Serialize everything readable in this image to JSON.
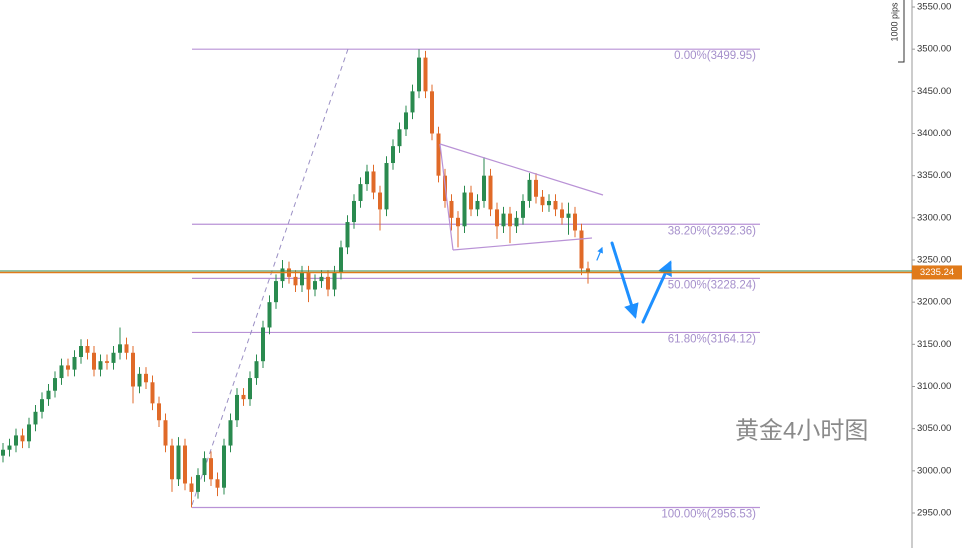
{
  "chart_data": {
    "type": "candlestick",
    "annotation": "黄金4小时图",
    "scale_label": "1000 pips",
    "ylim": [
      2950,
      3550
    ],
    "yticks": [
      {
        "value": 2950,
        "label": "2950.00"
      },
      {
        "value": 3000,
        "label": "3000.00"
      },
      {
        "value": 3050,
        "label": "3050.00"
      },
      {
        "value": 3100,
        "label": "3100.00"
      },
      {
        "value": 3150,
        "label": "3150.00"
      },
      {
        "value": 3200,
        "label": "3200.00"
      },
      {
        "value": 3250,
        "label": "3250.00"
      },
      {
        "value": 3300,
        "label": "3300.00"
      },
      {
        "value": 3350,
        "label": "3350.00"
      },
      {
        "value": 3400,
        "label": "3400.00"
      },
      {
        "value": 3450,
        "label": "3450.00"
      },
      {
        "value": 3500,
        "label": "3500.00"
      },
      {
        "value": 3550,
        "label": "3550.00"
      }
    ],
    "up_color": "#2a8a4f",
    "down_color": "#e06a28",
    "last_price": 3235.24,
    "last_price_color": "#e07a1a",
    "fib_color": "#b992d6",
    "fib_levels": [
      {
        "label": "0.00%(3499.95)",
        "value": 3499.95
      },
      {
        "label": "38.20%(3292.36)",
        "value": 3292.36
      },
      {
        "label": "50.00%(3228.24)",
        "value": 3228.24
      },
      {
        "label": "61.80%(3164.12)",
        "value": 3164.12
      },
      {
        "label": "100.00%(2956.53)",
        "value": 2956.53
      }
    ],
    "open": [
      3018,
      3025,
      3030,
      3042,
      3035,
      3055,
      3070,
      3085,
      3095,
      3110,
      3125,
      3120,
      3135,
      3148,
      3140,
      3120,
      3130,
      3128,
      3140,
      3150,
      3140,
      3100,
      3115,
      3105,
      3080,
      3060,
      3030,
      2990,
      3030,
      2985,
      2975,
      2995,
      3015,
      2990,
      2980,
      3030,
      3060,
      3090,
      3085,
      3110,
      3130,
      3170,
      3200,
      3225,
      3240,
      3230,
      3220,
      3235,
      3215,
      3225,
      3230,
      3215,
      3235,
      3265,
      3295,
      3320,
      3340,
      3355,
      3330,
      3310,
      3365,
      3385,
      3405,
      3425,
      3450,
      3490,
      3450,
      3400,
      3350,
      3320,
      3300,
      3290,
      3330,
      3310,
      3320,
      3350,
      3310,
      3290,
      3305,
      3290,
      3300,
      3320,
      3345,
      3325,
      3315,
      3320,
      3310,
      3300,
      3305,
      3285,
      3240
    ],
    "high": [
      3033,
      3038,
      3050,
      3050,
      3063,
      3078,
      3093,
      3103,
      3118,
      3133,
      3133,
      3143,
      3156,
      3156,
      3148,
      3138,
      3138,
      3148,
      3170,
      3158,
      3148,
      3123,
      3123,
      3113,
      3088,
      3068,
      3038,
      3040,
      3038,
      2993,
      3003,
      3023,
      3023,
      2998,
      3038,
      3068,
      3098,
      3098,
      3118,
      3138,
      3178,
      3208,
      3233,
      3250,
      3248,
      3238,
      3243,
      3243,
      3233,
      3238,
      3238,
      3243,
      3273,
      3303,
      3328,
      3348,
      3363,
      3363,
      3338,
      3373,
      3393,
      3413,
      3433,
      3458,
      3499.95,
      3498,
      3458,
      3408,
      3358,
      3328,
      3308,
      3338,
      3338,
      3328,
      3372,
      3358,
      3318,
      3313,
      3313,
      3308,
      3328,
      3353,
      3353,
      3333,
      3328,
      3328,
      3318,
      3318,
      3313,
      3293,
      3248
    ],
    "low": [
      3010,
      3017,
      3022,
      3027,
      3027,
      3047,
      3062,
      3077,
      3087,
      3102,
      3112,
      3112,
      3127,
      3132,
      3112,
      3112,
      3120,
      3120,
      3132,
      3132,
      3080,
      3092,
      3097,
      3072,
      3052,
      3022,
      2975,
      2982,
      2977,
      2956.53,
      2967,
      2987,
      2982,
      2970,
      2972,
      3022,
      3052,
      3077,
      3077,
      3102,
      3122,
      3162,
      3192,
      3217,
      3222,
      3212,
      3212,
      3200,
      3207,
      3217,
      3207,
      3207,
      3227,
      3257,
      3287,
      3312,
      3332,
      3322,
      3285,
      3302,
      3357,
      3377,
      3397,
      3417,
      3442,
      3442,
      3392,
      3342,
      3312,
      3285,
      3265,
      3282,
      3302,
      3302,
      3312,
      3302,
      3275,
      3282,
      3270,
      3282,
      3292,
      3312,
      3317,
      3307,
      3307,
      3302,
      3292,
      3280,
      3277,
      3232,
      3222
    ],
    "close": [
      3025,
      3030,
      3042,
      3035,
      3055,
      3070,
      3085,
      3095,
      3110,
      3125,
      3120,
      3135,
      3148,
      3140,
      3120,
      3130,
      3128,
      3140,
      3150,
      3140,
      3100,
      3115,
      3105,
      3080,
      3060,
      3030,
      2990,
      3030,
      2985,
      2975,
      2995,
      3015,
      2990,
      2980,
      3030,
      3060,
      3090,
      3085,
      3110,
      3130,
      3170,
      3200,
      3225,
      3240,
      3230,
      3220,
      3235,
      3215,
      3225,
      3230,
      3215,
      3235,
      3265,
      3295,
      3320,
      3340,
      3355,
      3330,
      3310,
      3365,
      3385,
      3405,
      3425,
      3450,
      3490,
      3450,
      3400,
      3350,
      3320,
      3300,
      3290,
      3330,
      3310,
      3320,
      3350,
      3310,
      3290,
      3305,
      3290,
      3300,
      3320,
      3345,
      3325,
      3315,
      3320,
      3310,
      3300,
      3305,
      3285,
      3240,
      3235.24
    ]
  }
}
